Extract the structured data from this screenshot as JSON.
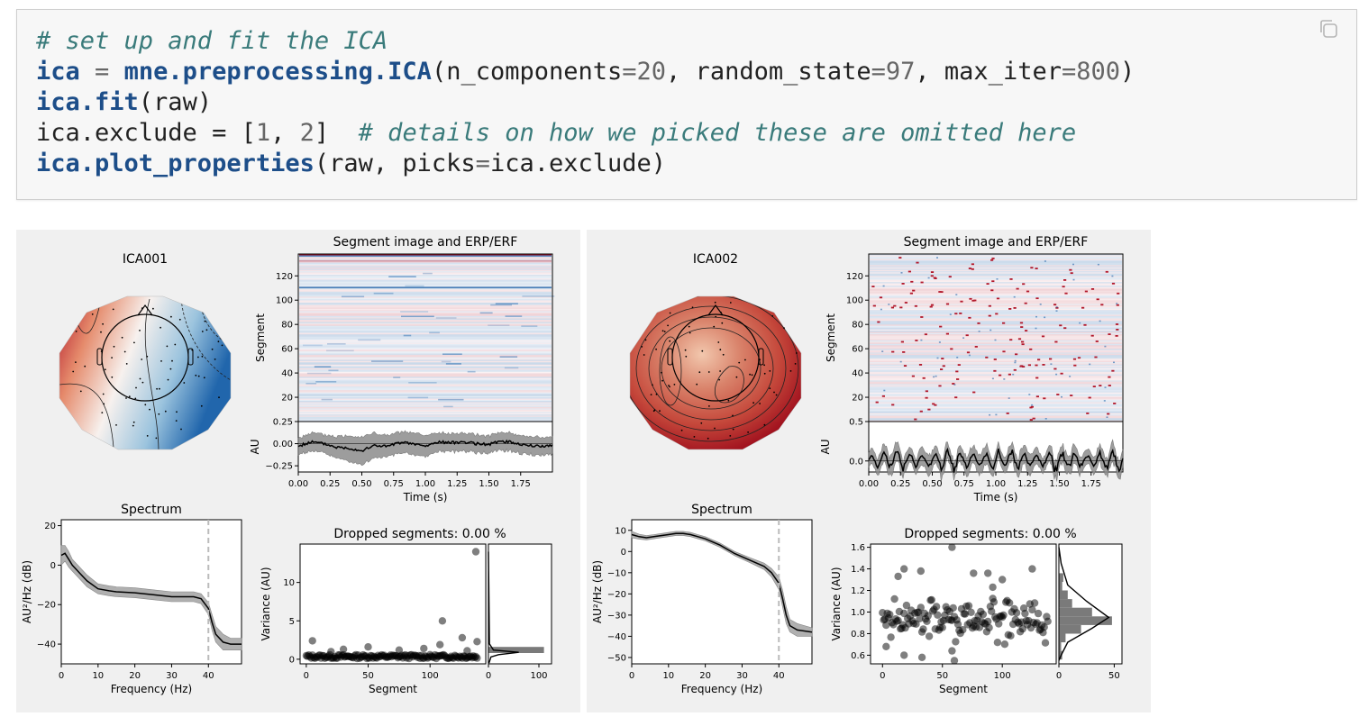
{
  "code": {
    "lines": [
      [
        {
          "t": "# set up and fit the ICA",
          "c": "comment"
        }
      ],
      [
        {
          "t": "ica",
          "c": "name"
        },
        {
          "t": " = ",
          "c": "op"
        },
        {
          "t": "mne.preprocessing.ICA",
          "c": "name"
        },
        {
          "t": "(n_components",
          "c": ""
        },
        {
          "t": "=",
          "c": "op"
        },
        {
          "t": "20",
          "c": "num"
        },
        {
          "t": ", random_state",
          "c": ""
        },
        {
          "t": "=",
          "c": "op"
        },
        {
          "t": "97",
          "c": "num"
        },
        {
          "t": ", max_iter",
          "c": ""
        },
        {
          "t": "=",
          "c": "op"
        },
        {
          "t": "800",
          "c": "num"
        },
        {
          "t": ")",
          "c": ""
        }
      ],
      [
        {
          "t": "ica.fit",
          "c": "name"
        },
        {
          "t": "(raw)",
          "c": ""
        }
      ],
      [
        {
          "t": "ica.exclude = [",
          "c": ""
        },
        {
          "t": "1",
          "c": "num"
        },
        {
          "t": ", ",
          "c": ""
        },
        {
          "t": "2",
          "c": "num"
        },
        {
          "t": "]  ",
          "c": ""
        },
        {
          "t": "# details on how we picked these are omitted here",
          "c": "comment"
        }
      ],
      [
        {
          "t": "ica.plot_properties",
          "c": "name"
        },
        {
          "t": "(raw, picks",
          "c": ""
        },
        {
          "t": "=",
          "c": "op"
        },
        {
          "t": "ica.exclude)",
          "c": ""
        }
      ]
    ],
    "copy_icon": "copy-icon"
  },
  "colors": {
    "red": "#b2182b",
    "blue": "#2166ac",
    "band": "#9e9e9e",
    "figure_bg": "#f0f0f0"
  },
  "chart_data": [
    {
      "component": "ICA001",
      "topomap": {
        "title": "ICA001",
        "pattern": "left-red-right-blue"
      },
      "image": {
        "type": "heatmap",
        "title": "Segment image and ERP/ERF",
        "ylabel": "Segment",
        "yticks": [
          20,
          40,
          60,
          80,
          100,
          120
        ],
        "ylim": [
          0,
          138
        ],
        "rows": [
          {
            "seg": 137,
            "sign": 1,
            "strength": 1
          },
          {
            "seg": 136,
            "sign": -1,
            "strength": 0.7
          },
          {
            "seg": 132,
            "sign": 1,
            "strength": 0.4
          },
          {
            "seg": 110,
            "sign": -1,
            "strength": 0.8
          }
        ]
      },
      "erp": {
        "type": "line",
        "ylabel": "AU",
        "xlabel": "Time (s)",
        "xlim": [
          0,
          2
        ],
        "ylim": [
          -0.32,
          0.25
        ],
        "yticks": [
          0.25,
          0.0,
          -0.25
        ],
        "ytick_labels": [
          "0.25",
          "0.00",
          "−0.25"
        ],
        "xticks": [
          0,
          0.25,
          0.5,
          0.75,
          1.0,
          1.25,
          1.5,
          1.75
        ],
        "xtick_labels": [
          "0.00",
          "0.25",
          "0.50",
          "0.75",
          "1.00",
          "1.25",
          "1.50",
          "1.75"
        ],
        "x": [
          0,
          0.1,
          0.2,
          0.3,
          0.4,
          0.5,
          0.6,
          0.7,
          0.8,
          0.9,
          1.0,
          1.1,
          1.2,
          1.3,
          1.4,
          1.5,
          1.6,
          1.7,
          1.8,
          1.9,
          2.0
        ],
        "y": [
          -0.03,
          0.02,
          0.0,
          -0.04,
          -0.05,
          -0.08,
          -0.02,
          -0.03,
          0.01,
          0.0,
          -0.03,
          0.02,
          0.01,
          0.02,
          0.0,
          -0.01,
          0.03,
          0.01,
          -0.02,
          -0.03,
          -0.02
        ],
        "band": [
          0.09,
          0.1,
          0.1,
          0.12,
          0.14,
          0.16,
          0.14,
          0.12,
          0.12,
          0.12,
          0.12,
          0.1,
          0.1,
          0.1,
          0.1,
          0.1,
          0.1,
          0.1,
          0.1,
          0.1,
          0.1
        ]
      },
      "spectrum": {
        "type": "line",
        "title": "Spectrum",
        "xlabel": "Frequency (Hz)",
        "ylabel": "AU²/Hz (dB)",
        "xlim": [
          0,
          49
        ],
        "ylim": [
          -50,
          23
        ],
        "xticks": [
          0,
          10,
          20,
          30,
          40
        ],
        "yticks": [
          20,
          0,
          -20,
          -40
        ],
        "ytick_labels": [
          "20",
          "0",
          "−20",
          "−40"
        ],
        "vline": 40,
        "x": [
          0,
          1,
          2,
          3,
          5,
          7,
          10,
          13,
          15,
          20,
          25,
          30,
          33,
          36,
          38,
          40,
          41,
          42,
          44,
          46,
          49
        ],
        "y": [
          5,
          6,
          3,
          0,
          -4,
          -8,
          -12,
          -13,
          -13.5,
          -14,
          -15,
          -16,
          -16,
          -16,
          -17,
          -22,
          -29,
          -35,
          -39,
          -40,
          -40
        ],
        "band": [
          5,
          4,
          4,
          3,
          3,
          3,
          2.5,
          2.5,
          2.5,
          2.5,
          2.5,
          2.5,
          2.5,
          2.5,
          2.5,
          3,
          4,
          4,
          4,
          3,
          3
        ]
      },
      "variance": {
        "type": "scatter",
        "title": "Dropped segments: 0.00 %",
        "xlabel": "Segment",
        "ylabel": "Variance (AU)",
        "xlim": [
          -5,
          145
        ],
        "ylim": [
          -0.6,
          15
        ],
        "xticks": [
          0,
          50,
          100
        ],
        "yticks": [
          0,
          5,
          10
        ],
        "outliers": [
          [
            137,
            14
          ],
          [
            110,
            5
          ],
          [
            126,
            2.8
          ],
          [
            138,
            2.3
          ],
          [
            5,
            2.4
          ],
          [
            108,
            1.9
          ],
          [
            50,
            1.6
          ],
          [
            95,
            1.4
          ],
          [
            30,
            1.3
          ],
          [
            75,
            1.2
          ],
          [
            20,
            1.0
          ],
          [
            130,
            1.1
          ]
        ],
        "base": 0.35,
        "hist_xticks": [
          0,
          100
        ],
        "hist_xlim": [
          0,
          125
        ],
        "hist": [
          {
            "lo": 0.8,
            "hi": 1.6,
            "count": 110
          }
        ],
        "kde": [
          [
            0,
            14
          ],
          [
            2,
            2
          ],
          [
            10,
            1.2
          ],
          [
            60,
            0.9
          ],
          [
            20,
            0.6
          ],
          [
            5,
            0.3
          ],
          [
            1,
            -0.5
          ]
        ]
      }
    },
    {
      "component": "ICA002",
      "topomap": {
        "title": "ICA002",
        "pattern": "all-red"
      },
      "image": {
        "type": "heatmap",
        "title": "Segment image and ERP/ERF",
        "ylabel": "Segment",
        "yticks": [
          20,
          40,
          60,
          80,
          100,
          120
        ],
        "ylim": [
          0,
          138
        ],
        "style": "sparse-spikes"
      },
      "erp": {
        "type": "line",
        "ylabel": "AU",
        "xlabel": "Time (s)",
        "xlim": [
          0,
          2
        ],
        "ylim": [
          -0.14,
          0.5
        ],
        "yticks": [
          0.5,
          0.0
        ],
        "ytick_labels": [
          "0.5",
          "0.0"
        ],
        "xticks": [
          0,
          0.25,
          0.5,
          0.75,
          1.0,
          1.25,
          1.5,
          1.75
        ],
        "xtick_labels": [
          "0.00",
          "0.25",
          "0.50",
          "0.75",
          "1.00",
          "1.25",
          "1.50",
          "1.75"
        ],
        "x": [
          0,
          0.1,
          0.2,
          0.3,
          0.4,
          0.5,
          0.6,
          0.7,
          0.8,
          0.9,
          1.0,
          1.1,
          1.2,
          1.3,
          1.4,
          1.5,
          1.6,
          1.7,
          1.8,
          1.9,
          2.0
        ],
        "y": [
          0.02,
          0.01,
          0.0,
          0.02,
          0.0,
          0.01,
          0.02,
          0.02,
          0.03,
          0.0,
          0.01,
          0.02,
          0.0,
          0.03,
          0.0,
          0.01,
          0.02,
          0.0,
          0.0,
          0.01,
          0.0
        ],
        "band": [
          0.08,
          0.09,
          0.1,
          0.1,
          0.1,
          0.09,
          0.1,
          0.11,
          0.1,
          0.1,
          0.1,
          0.1,
          0.1,
          0.1,
          0.1,
          0.1,
          0.1,
          0.1,
          0.1,
          0.09,
          0.08
        ],
        "oscillation": true
      },
      "spectrum": {
        "type": "line",
        "title": "Spectrum",
        "xlabel": "Frequency (Hz)",
        "ylabel": "AU²/Hz (dB)",
        "xlim": [
          0,
          49
        ],
        "ylim": [
          -53,
          15
        ],
        "xticks": [
          0,
          10,
          20,
          30,
          40
        ],
        "yticks": [
          10,
          0,
          -10,
          -20,
          -30,
          -40,
          -50
        ],
        "ytick_labels": [
          "10",
          "0",
          "−10",
          "−20",
          "−30",
          "−40",
          "−50"
        ],
        "vline": 40,
        "x": [
          0,
          2,
          4,
          6,
          8,
          10,
          12,
          14,
          16,
          18,
          20,
          24,
          28,
          32,
          36,
          38,
          40,
          41,
          42,
          43,
          45,
          49
        ],
        "y": [
          8,
          7,
          6.5,
          7,
          7.5,
          8,
          8.5,
          8.5,
          8,
          7,
          6,
          3,
          -1,
          -4,
          -7,
          -10,
          -15,
          -22,
          -30,
          -35,
          -37,
          -38
        ],
        "band": [
          1.5,
          1.2,
          1,
          1,
          1,
          1,
          1,
          1,
          1,
          1,
          1,
          1,
          1,
          1.2,
          1.5,
          2,
          3,
          4,
          4,
          3,
          3,
          2
        ]
      },
      "variance": {
        "type": "scatter",
        "title": "Dropped segments: 0.00 %",
        "xlabel": "Segment",
        "ylabel": "Variance (AU)",
        "xlim": [
          -10,
          145
        ],
        "ylim": [
          0.52,
          1.63
        ],
        "xticks": [
          0,
          50,
          100
        ],
        "yticks": [
          0.6,
          0.8,
          1.0,
          1.2,
          1.4,
          1.6
        ],
        "ytick_labels": [
          "0.6",
          "0.8",
          "1.0",
          "1.2",
          "1.4",
          "1.6"
        ],
        "hist_xticks": [
          0,
          50
        ],
        "hist_xlim": [
          0,
          57
        ],
        "hist": [
          {
            "lo": 0.56,
            "hi": 0.64,
            "count": 3
          },
          {
            "lo": 0.64,
            "hi": 0.72,
            "count": 2
          },
          {
            "lo": 0.72,
            "hi": 0.8,
            "count": 6
          },
          {
            "lo": 0.8,
            "hi": 0.88,
            "count": 20
          },
          {
            "lo": 0.88,
            "hi": 0.96,
            "count": 48
          },
          {
            "lo": 0.96,
            "hi": 1.04,
            "count": 30
          },
          {
            "lo": 1.04,
            "hi": 1.12,
            "count": 12
          },
          {
            "lo": 1.12,
            "hi": 1.2,
            "count": 8
          },
          {
            "lo": 1.2,
            "hi": 1.28,
            "count": 3
          },
          {
            "lo": 1.28,
            "hi": 1.36,
            "count": 4
          }
        ],
        "kde": [
          [
            0,
            1.6
          ],
          [
            2,
            1.45
          ],
          [
            8,
            1.25
          ],
          [
            25,
            1.1
          ],
          [
            45,
            0.95
          ],
          [
            30,
            0.85
          ],
          [
            8,
            0.72
          ],
          [
            2,
            0.6
          ],
          [
            0,
            0.55
          ]
        ]
      }
    }
  ]
}
